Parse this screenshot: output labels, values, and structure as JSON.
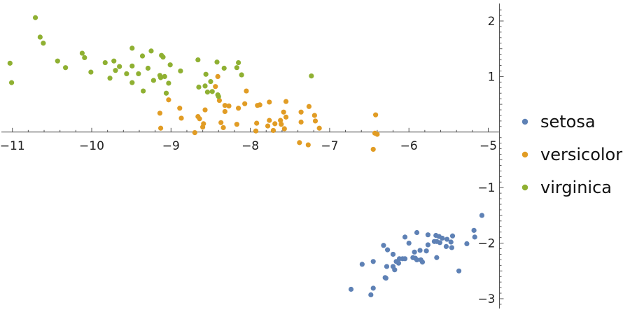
{
  "chart_data": {
    "type": "scatter",
    "title": "",
    "xlabel": "",
    "ylabel": "",
    "xlim": [
      -11.1,
      -4.8
    ],
    "ylim": [
      -3.15,
      2.3
    ],
    "grid": false,
    "legend_placement": "right",
    "x_ticks": [
      -11,
      -10,
      -9,
      -8,
      -7,
      -6,
      -5
    ],
    "x_tick_labels": [
      "−11",
      "−10",
      "−9",
      "−8",
      "−7",
      "−6",
      "−5"
    ],
    "y_ticks": [
      -3,
      -2,
      -1,
      1,
      2
    ],
    "y_tick_labels": [
      "−3",
      "−2",
      "−1",
      "1",
      "2"
    ],
    "series": [
      {
        "name": "setosa",
        "color": "#5e81b5",
        "points": [
          [
            -5.08,
            -1.5
          ],
          [
            -5.18,
            -1.77
          ],
          [
            -5.17,
            -1.89
          ],
          [
            -5.27,
            -2.01
          ],
          [
            -5.37,
            -2.5
          ],
          [
            -5.46,
            -2.08
          ],
          [
            -5.45,
            -1.87
          ],
          [
            -5.47,
            -1.98
          ],
          [
            -5.52,
            -1.93
          ],
          [
            -5.53,
            -2.06
          ],
          [
            -5.58,
            -1.91
          ],
          [
            -5.61,
            -1.99
          ],
          [
            -5.62,
            -1.88
          ],
          [
            -5.66,
            -1.86
          ],
          [
            -5.65,
            -1.97
          ],
          [
            -5.68,
            -1.97
          ],
          [
            -5.65,
            -2.26
          ],
          [
            -5.76,
            -1.85
          ],
          [
            -5.76,
            -2.03
          ],
          [
            -5.78,
            -2.14
          ],
          [
            -5.83,
            -2.34
          ],
          [
            -5.85,
            -2.3
          ],
          [
            -5.86,
            -2.13
          ],
          [
            -5.9,
            -1.81
          ],
          [
            -5.9,
            -2.3
          ],
          [
            -5.92,
            -2.27
          ],
          [
            -5.93,
            -2.16
          ],
          [
            -5.95,
            -2.26
          ],
          [
            -6.0,
            -2.0
          ],
          [
            -6.05,
            -1.89
          ],
          [
            -6.05,
            -2.28
          ],
          [
            -6.08,
            -2.28
          ],
          [
            -6.12,
            -2.28
          ],
          [
            -6.13,
            -2.36
          ],
          [
            -6.16,
            -2.33
          ],
          [
            -6.18,
            -2.48
          ],
          [
            -6.2,
            -2.42
          ],
          [
            -6.2,
            -2.2
          ],
          [
            -6.27,
            -2.12
          ],
          [
            -6.28,
            -2.42
          ],
          [
            -6.3,
            -2.62
          ],
          [
            -6.29,
            -2.63
          ],
          [
            -6.32,
            -2.04
          ],
          [
            -6.45,
            -2.33
          ],
          [
            -6.45,
            -2.81
          ],
          [
            -6.48,
            -2.93
          ],
          [
            -6.59,
            -2.38
          ],
          [
            -6.73,
            -2.83
          ]
        ]
      },
      {
        "name": "versicolor",
        "color": "#e19c24",
        "points": [
          [
            -6.42,
            0.31
          ],
          [
            -6.43,
            -0.02
          ],
          [
            -6.4,
            -0.04
          ],
          [
            -6.45,
            -0.31
          ],
          [
            -7.13,
            0.07
          ],
          [
            -7.18,
            0.2
          ],
          [
            -7.19,
            0.3
          ],
          [
            -7.26,
            0.46
          ],
          [
            -7.27,
            -0.23
          ],
          [
            -7.36,
            0.18
          ],
          [
            -7.36,
            0.36
          ],
          [
            -7.38,
            -0.19
          ],
          [
            -7.55,
            0.55
          ],
          [
            -7.55,
            0.27
          ],
          [
            -7.57,
            0.06
          ],
          [
            -7.58,
            0.36
          ],
          [
            -7.61,
            0.14
          ],
          [
            -7.62,
            0.21
          ],
          [
            -7.69,
            0.15
          ],
          [
            -7.71,
            0.03
          ],
          [
            -7.76,
            0.54
          ],
          [
            -7.76,
            0.21
          ],
          [
            -7.78,
            0.11
          ],
          [
            -7.88,
            0.49
          ],
          [
            -7.91,
            0.48
          ],
          [
            -7.92,
            0.16
          ],
          [
            -7.93,
            0.02
          ],
          [
            -8.05,
            0.74
          ],
          [
            -8.07,
            0.51
          ],
          [
            -8.15,
            0.43
          ],
          [
            -8.17,
            0.14
          ],
          [
            -8.27,
            0.47
          ],
          [
            -8.32,
            0.48
          ],
          [
            -8.32,
            0.37
          ],
          [
            -8.34,
            0.08
          ],
          [
            -8.37,
            0.17
          ],
          [
            -8.39,
            0.57
          ],
          [
            -8.41,
            1.0
          ],
          [
            -8.44,
            0.82
          ],
          [
            -8.57,
            0.4
          ],
          [
            -8.59,
            0.15
          ],
          [
            -8.6,
            0.09
          ],
          [
            -8.64,
            0.24
          ],
          [
            -8.66,
            0.28
          ],
          [
            -8.7,
            -0.01
          ],
          [
            -8.87,
            0.25
          ],
          [
            -8.89,
            0.43
          ],
          [
            -9.03,
            0.58
          ],
          [
            -9.13,
            0.07
          ],
          [
            -9.14,
            0.34
          ]
        ]
      },
      {
        "name": "virginica",
        "color": "#8fb032",
        "points": [
          [
            -11.03,
            1.24
          ],
          [
            -11.01,
            0.89
          ],
          [
            -10.71,
            2.06
          ],
          [
            -10.65,
            1.71
          ],
          [
            -10.61,
            1.6
          ],
          [
            -10.43,
            1.28
          ],
          [
            -10.33,
            1.16
          ],
          [
            -10.12,
            1.42
          ],
          [
            -10.09,
            1.34
          ],
          [
            -10.01,
            1.08
          ],
          [
            -9.83,
            1.25
          ],
          [
            -9.77,
            0.97
          ],
          [
            -9.72,
            1.28
          ],
          [
            -9.7,
            1.11
          ],
          [
            -9.65,
            1.18
          ],
          [
            -9.56,
            1.05
          ],
          [
            -9.49,
            1.51
          ],
          [
            -9.49,
            1.19
          ],
          [
            -9.49,
            0.89
          ],
          [
            -9.41,
            1.05
          ],
          [
            -9.36,
            1.37
          ],
          [
            -9.35,
            0.74
          ],
          [
            -9.29,
            1.15
          ],
          [
            -9.25,
            1.46
          ],
          [
            -9.22,
            0.93
          ],
          [
            -9.14,
            1.02
          ],
          [
            -9.13,
            0.98
          ],
          [
            -9.12,
            1.38
          ],
          [
            -9.1,
            1.35
          ],
          [
            -9.08,
            1.0
          ],
          [
            -9.06,
            0.7
          ],
          [
            -9.03,
            0.88
          ],
          [
            -9.01,
            1.21
          ],
          [
            -8.88,
            1.1
          ],
          [
            -8.66,
            1.3
          ],
          [
            -8.65,
            0.81
          ],
          [
            -8.57,
            0.83
          ],
          [
            -8.56,
            1.04
          ],
          [
            -8.54,
            0.72
          ],
          [
            -8.5,
            0.91
          ],
          [
            -8.48,
            0.73
          ],
          [
            -8.42,
            1.26
          ],
          [
            -8.41,
            0.67
          ],
          [
            -8.4,
            0.64
          ],
          [
            -8.33,
            1.15
          ],
          [
            -8.17,
            1.16
          ],
          [
            -8.15,
            1.25
          ],
          [
            -8.11,
            1.03
          ],
          [
            -7.23,
            1.01
          ]
        ]
      }
    ]
  }
}
